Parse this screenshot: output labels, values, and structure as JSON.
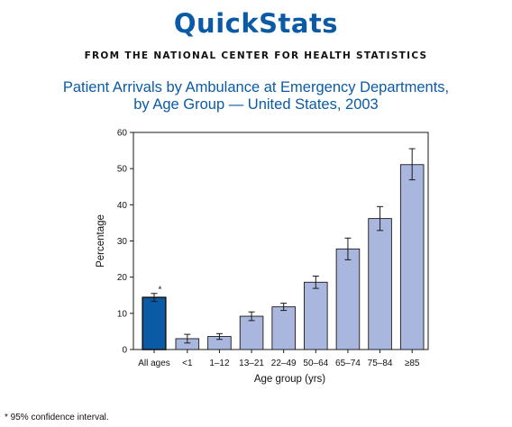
{
  "header": {
    "brand": "QuickStats",
    "source": "FROM THE NATIONAL CENTER FOR HEALTH STATISTICS"
  },
  "chart_data": {
    "type": "bar",
    "title_lines": [
      "Patient Arrivals by Ambulance at Emergency Departments,",
      "by Age Group — United States, 2003"
    ],
    "xlabel": "Age group (yrs)",
    "ylabel": "Percentage",
    "ylim": [
      0,
      60
    ],
    "yticks": [
      0,
      10,
      20,
      30,
      40,
      50,
      60
    ],
    "grid": false,
    "categories": [
      "All ages",
      "<1",
      "1–12",
      "13–21",
      "22–49",
      "50–64",
      "65–74",
      "75–84",
      "≥85"
    ],
    "values": [
      14.4,
      3.0,
      3.6,
      9.2,
      11.8,
      18.6,
      27.8,
      36.2,
      51.1
    ],
    "error_low": [
      13.3,
      1.8,
      2.8,
      8.0,
      10.8,
      16.9,
      24.8,
      32.9,
      46.9
    ],
    "error_high": [
      15.5,
      4.2,
      4.4,
      10.4,
      12.8,
      20.3,
      30.8,
      39.5,
      55.5
    ],
    "highlight_index": 0,
    "highlight_marker": "*",
    "colors": {
      "highlight_bar": "#0b5aa6",
      "bars": "#a9b7de",
      "bar_stroke": "#1a1a1a",
      "title": "#0b5aa6"
    },
    "footnote": "* 95% confidence interval."
  }
}
